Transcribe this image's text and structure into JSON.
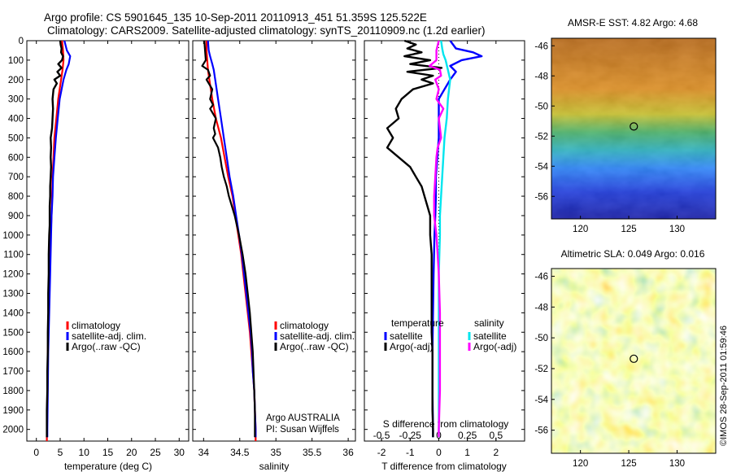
{
  "header": {
    "title_line1": "Argo profile: CS 5901645_135 10-Sep-2011 20110913_451 51.359S 125.522E",
    "title_line2": "Climatology: CARS2009. Satellite-adjusted climatology: synTS_20110909.nc (1.2d earlier)"
  },
  "watermark": "©IMOS 28-Sep-2011 01:59:46",
  "colors": {
    "climatology": "#ff0000",
    "satellite": "#0000ff",
    "argo": "#000000",
    "sal_satellite": "#00e5ee",
    "sal_argo": "#ff00ff"
  },
  "chart_data": [
    {
      "type": "line",
      "panel": "temperature",
      "xlabel": "temperature (deg C)",
      "ylabel": "",
      "xlim": [
        -2,
        32
      ],
      "ylim": [
        2060,
        0
      ],
      "xticks": [
        0,
        5,
        10,
        15,
        20,
        25,
        30
      ],
      "yticks": [
        0,
        100,
        200,
        300,
        400,
        500,
        600,
        700,
        800,
        900,
        1000,
        1100,
        1200,
        1300,
        1400,
        1500,
        1600,
        1700,
        1800,
        1900,
        2000
      ],
      "legend": [
        "climatology",
        "satellite-adj. clim.",
        "Argo(..raw -QC)"
      ],
      "legend_position": "lower-center",
      "series": [
        {
          "name": "climatology",
          "color": "#ff0000",
          "depth": [
            0,
            50,
            100,
            150,
            200,
            300,
            400,
            500,
            600,
            700,
            800,
            900,
            1000,
            1200,
            1400,
            1600,
            1800,
            2000,
            2060
          ],
          "values": [
            5.4,
            5.6,
            5.7,
            5.5,
            5.2,
            4.6,
            4.2,
            3.8,
            3.6,
            3.4,
            3.3,
            3.2,
            3.0,
            2.8,
            2.6,
            2.4,
            2.3,
            2.2,
            2.2
          ]
        },
        {
          "name": "satellite-adj. clim.",
          "color": "#0000ff",
          "depth": [
            0,
            50,
            80,
            120,
            150,
            200,
            300,
            400,
            500,
            600,
            700,
            800,
            900,
            1000,
            1200,
            1400,
            1600,
            1800,
            2000,
            2040
          ],
          "values": [
            5.9,
            6.4,
            7.1,
            6.8,
            6.3,
            5.7,
            4.9,
            4.5,
            4.1,
            3.8,
            3.5,
            3.4,
            3.2,
            3.1,
            2.9,
            2.7,
            2.5,
            2.4,
            2.3,
            2.3
          ]
        },
        {
          "name": "Argo(..raw -QC)",
          "color": "#000000",
          "depth": [
            0,
            20,
            40,
            60,
            80,
            100,
            120,
            140,
            160,
            180,
            200,
            220,
            250,
            300,
            350,
            400,
            450,
            500,
            550,
            600,
            650,
            700,
            750,
            800,
            850,
            900,
            950,
            1000,
            1100,
            1200,
            1300,
            1400,
            1500,
            1600,
            1700,
            1800,
            1900,
            2000,
            2040
          ],
          "values": [
            5.0,
            5.1,
            5.3,
            5.2,
            5.6,
            5.4,
            4.6,
            5.3,
            4.4,
            5.0,
            3.8,
            4.3,
            3.6,
            3.4,
            3.5,
            3.4,
            3.3,
            3.0,
            3.1,
            3.0,
            3.1,
            3.0,
            2.9,
            2.9,
            2.8,
            2.8,
            2.8,
            2.7,
            2.6,
            2.6,
            2.5,
            2.5,
            2.4,
            2.4,
            2.3,
            2.3,
            2.2,
            2.2,
            2.2
          ]
        }
      ]
    },
    {
      "type": "line",
      "panel": "salinity",
      "xlabel": "salinity",
      "ylabel": "",
      "xlim": [
        33.85,
        36.1
      ],
      "ylim": [
        2060,
        0
      ],
      "xticks": [
        34,
        34.5,
        35,
        35.5,
        36
      ],
      "legend": [
        "climatology",
        "satellite-adj. clim.",
        "Argo(..raw -QC)"
      ],
      "legend_position": "lower-center",
      "annotation_line1": "Argo AUSTRALIA",
      "annotation_line2": "PI: Susan Wijffels",
      "series": [
        {
          "name": "climatology",
          "color": "#ff0000",
          "depth": [
            0,
            50,
            100,
            150,
            200,
            300,
            400,
            500,
            600,
            700,
            800,
            900,
            1000,
            1100,
            1200,
            1300,
            1400,
            1500,
            1600,
            1700,
            1800,
            1900,
            2000,
            2060
          ],
          "values": [
            34.04,
            34.04,
            34.05,
            34.06,
            34.08,
            34.12,
            34.17,
            34.24,
            34.29,
            34.34,
            34.4,
            34.44,
            34.48,
            34.52,
            34.55,
            34.58,
            34.61,
            34.64,
            34.66,
            34.68,
            34.7,
            34.71,
            34.72,
            34.72
          ]
        },
        {
          "name": "satellite-adj. clim.",
          "color": "#0000ff",
          "depth": [
            0,
            50,
            80,
            120,
            150,
            200,
            300,
            400,
            500,
            600,
            700,
            800,
            900,
            1000,
            1100,
            1200,
            1300,
            1400,
            1500,
            1600,
            1700,
            1800,
            1900,
            2000,
            2040
          ],
          "values": [
            34.06,
            34.07,
            34.09,
            34.12,
            34.14,
            34.16,
            34.2,
            34.24,
            34.28,
            34.32,
            34.36,
            34.41,
            34.45,
            34.49,
            34.53,
            34.56,
            34.59,
            34.62,
            34.65,
            34.67,
            34.68,
            34.7,
            34.71,
            34.72,
            34.72
          ]
        },
        {
          "name": "Argo(..raw -QC)",
          "color": "#000000",
          "depth": [
            0,
            50,
            100,
            130,
            150,
            180,
            200,
            250,
            300,
            330,
            350,
            400,
            450,
            480,
            500,
            550,
            600,
            650,
            700,
            750,
            800,
            850,
            900,
            950,
            1000,
            1100,
            1200,
            1300,
            1400,
            1500,
            1600,
            1700,
            1800,
            1900,
            2000,
            2040
          ],
          "values": [
            34.01,
            34.02,
            34.03,
            33.98,
            34.06,
            34.09,
            34.04,
            34.12,
            34.09,
            34.13,
            34.09,
            34.17,
            34.14,
            34.16,
            34.13,
            34.2,
            34.23,
            34.25,
            34.28,
            34.32,
            34.35,
            34.39,
            34.43,
            34.46,
            34.49,
            34.54,
            34.58,
            34.61,
            34.64,
            34.66,
            34.68,
            34.69,
            34.7,
            34.71,
            34.71,
            34.71
          ]
        }
      ]
    },
    {
      "type": "line",
      "panel": "difference",
      "xlabel": "T difference from climatology",
      "x2label": "S difference from climatology",
      "xlim": [
        -2.6,
        3.0
      ],
      "x2lim": [
        -0.65,
        0.75
      ],
      "ylim": [
        2060,
        0
      ],
      "xticks": [
        -2,
        -1,
        0,
        1,
        2
      ],
      "x2ticks": [
        -0.5,
        -0.25,
        0,
        0.25,
        0.5
      ],
      "x2tick_labels": [
        "-0.5",
        "-0.25",
        "0",
        "0.25",
        "0.5"
      ],
      "legend_temperature_header": "temperature",
      "legend_salinity_header": "salinity",
      "legend_temperature": [
        "satellite",
        "Argo(-adj)"
      ],
      "legend_salinity": [
        "satellite",
        "Argo(-adj)"
      ],
      "series": [
        {
          "name": "temperature satellite",
          "axis": "T",
          "color": "#0000ff",
          "depth": [
            0,
            40,
            60,
            80,
            100,
            130,
            160,
            200,
            250,
            300,
            400,
            500,
            600,
            700,
            800,
            900,
            1000,
            1200,
            1400,
            1600,
            1800,
            2000,
            2040
          ],
          "values": [
            0.4,
            0.6,
            1.2,
            1.5,
            0.8,
            0.4,
            0.6,
            0.4,
            0.2,
            0.0,
            0.0,
            0.0,
            -0.05,
            -0.1,
            -0.1,
            -0.12,
            -0.15,
            -0.18,
            -0.2,
            -0.22,
            -0.22,
            -0.2,
            -0.2
          ]
        },
        {
          "name": "temperature Argo(-adj)",
          "axis": "T",
          "color": "#000000",
          "depth": [
            0,
            20,
            40,
            60,
            80,
            100,
            120,
            140,
            160,
            180,
            200,
            220,
            250,
            300,
            350,
            400,
            450,
            500,
            550,
            600,
            650,
            700,
            750,
            800,
            850,
            900,
            1000,
            1100,
            1200,
            1300,
            1400,
            1500,
            1600,
            1700,
            1800,
            1900,
            2000,
            2040
          ],
          "values": [
            -1.2,
            -0.8,
            -1.1,
            -0.6,
            -1.2,
            -0.3,
            -1.0,
            0.1,
            -1.1,
            -0.2,
            -0.6,
            -0.2,
            -0.9,
            -1.3,
            -1.5,
            -1.4,
            -1.8,
            -1.6,
            -1.8,
            -1.4,
            -1.0,
            -0.8,
            -0.6,
            -0.5,
            -0.4,
            -0.3,
            -0.3,
            -0.25,
            -0.25,
            -0.25,
            -0.25,
            -0.25,
            -0.22,
            -0.22,
            -0.22,
            -0.22,
            -0.2,
            -0.2
          ]
        },
        {
          "name": "salinity satellite",
          "axis": "S",
          "color": "#00e5ee",
          "depth": [
            0,
            40,
            70,
            100,
            150,
            200,
            250,
            300,
            400,
            500,
            600,
            700,
            800,
            900,
            1000,
            1200,
            1400,
            1600,
            1800,
            2000,
            2040
          ],
          "values": [
            0.02,
            0.03,
            0.04,
            0.06,
            0.08,
            0.1,
            0.09,
            0.08,
            0.07,
            0.05,
            0.04,
            0.03,
            0.02,
            0.01,
            0.01,
            0.0,
            0.0,
            0.0,
            0.0,
            0.0,
            0.0
          ]
        },
        {
          "name": "salinity Argo(-adj)",
          "axis": "S",
          "color": "#ff00ff",
          "depth": [
            0,
            50,
            100,
            130,
            150,
            180,
            200,
            250,
            300,
            350,
            400,
            500,
            550,
            600,
            700,
            800,
            900,
            1000,
            1100,
            1200,
            1400,
            1600,
            1800,
            2000,
            2040
          ],
          "values": [
            0.0,
            -0.02,
            -0.02,
            -0.08,
            0.01,
            0.02,
            -0.03,
            0.0,
            -0.02,
            0.04,
            0.0,
            0.02,
            -0.01,
            -0.02,
            -0.03,
            -0.04,
            -0.04,
            -0.02,
            -0.01,
            0.0,
            0.01,
            0.01,
            0.01,
            0.0,
            0.0
          ]
        }
      ]
    },
    {
      "type": "heatmap",
      "panel": "sst",
      "title": "AMSR-E SST: 4.82 Argo: 4.68",
      "xlim": [
        117,
        134
      ],
      "ylim": [
        -57.5,
        -45.5
      ],
      "xticks": [
        120,
        125,
        130
      ],
      "yticks": [
        -46,
        -48,
        -50,
        -52,
        -54,
        -56
      ],
      "marker": {
        "lon": 125.522,
        "lat": -51.359
      }
    },
    {
      "type": "heatmap",
      "panel": "sla",
      "title": "Altimetric SLA: 0.049 Argo: 0.016",
      "xlim": [
        117,
        134
      ],
      "ylim": [
        -57.5,
        -45.5
      ],
      "xticks": [
        120,
        125,
        130
      ],
      "yticks": [
        -46,
        -48,
        -50,
        -52,
        -54,
        -56
      ],
      "marker": {
        "lon": 125.522,
        "lat": -51.359
      }
    }
  ]
}
